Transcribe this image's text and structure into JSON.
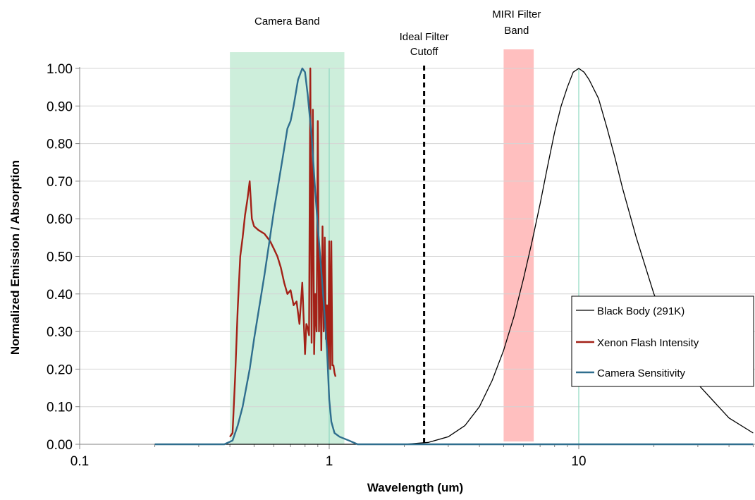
{
  "chart_data": {
    "type": "line",
    "xlabel": "Wavelength (um)",
    "ylabel": "Normalized Emission / Absorption",
    "x_scale": "log",
    "xlim": [
      0.1,
      50
    ],
    "ylim": [
      0,
      1
    ],
    "x_ticks": [
      "0.1",
      "1",
      "10"
    ],
    "y_ticks": [
      "0.00",
      "0.10",
      "0.20",
      "0.30",
      "0.40",
      "0.50",
      "0.60",
      "0.70",
      "0.80",
      "0.90",
      "1.00"
    ],
    "grid": "horizontal",
    "legend_position": "right",
    "annotations": {
      "camera_band": {
        "text": "Camera Band",
        "x_range": [
          0.4,
          1.15
        ],
        "color": "#cdeedb"
      },
      "filter_cutoff": {
        "text_line1": "Ideal Filter",
        "text_line2": "Cutoff",
        "x": 2.4
      },
      "miri_band": {
        "text_line1": "MIRI Filter",
        "text_line2": "Band",
        "x_range": [
          5,
          6.6
        ],
        "color": "#ffbfbf"
      },
      "reference_lines": [
        1,
        10
      ]
    },
    "series": [
      {
        "name": "Black Body (291K)",
        "color": "#000000",
        "x": [
          0.2,
          1,
          2,
          2.5,
          3,
          3.5,
          4,
          4.5,
          5,
          5.5,
          6,
          6.5,
          7,
          7.5,
          8,
          8.5,
          9,
          9.5,
          10,
          10.5,
          11,
          12,
          13,
          14,
          15,
          17,
          20,
          25,
          30,
          40,
          50
        ],
        "y": [
          0,
          0,
          0,
          0.005,
          0.02,
          0.05,
          0.1,
          0.17,
          0.25,
          0.34,
          0.44,
          0.54,
          0.64,
          0.74,
          0.83,
          0.9,
          0.95,
          0.99,
          1,
          0.99,
          0.97,
          0.92,
          0.84,
          0.76,
          0.68,
          0.55,
          0.4,
          0.25,
          0.16,
          0.07,
          0.03
        ]
      },
      {
        "name": "Xenon Flash Intensity",
        "color": "#a32117",
        "x": [
          0.4,
          0.41,
          0.42,
          0.43,
          0.44,
          0.45,
          0.46,
          0.47,
          0.48,
          0.49,
          0.5,
          0.52,
          0.55,
          0.58,
          0.6,
          0.62,
          0.64,
          0.66,
          0.68,
          0.7,
          0.72,
          0.74,
          0.76,
          0.78,
          0.8,
          0.81,
          0.82,
          0.83,
          0.84,
          0.85,
          0.86,
          0.87,
          0.88,
          0.89,
          0.9,
          0.91,
          0.92,
          0.93,
          0.94,
          0.95,
          0.96,
          0.97,
          0.98,
          0.99,
          1.0,
          1.01,
          1.02,
          1.03,
          1.04,
          1.05,
          1.06
        ],
        "y": [
          0.02,
          0.03,
          0.18,
          0.36,
          0.5,
          0.55,
          0.61,
          0.65,
          0.7,
          0.6,
          0.58,
          0.57,
          0.56,
          0.54,
          0.52,
          0.5,
          0.47,
          0.43,
          0.4,
          0.41,
          0.37,
          0.38,
          0.32,
          0.43,
          0.24,
          0.32,
          0.31,
          0.29,
          1.0,
          0.27,
          0.89,
          0.24,
          0.4,
          0.3,
          0.86,
          0.3,
          0.5,
          0.25,
          0.58,
          0.3,
          0.55,
          0.28,
          0.37,
          0.2,
          0.54,
          0.2,
          0.54,
          0.21,
          0.21,
          0.19,
          0.18
        ]
      },
      {
        "name": "Camera Sensitivity",
        "color": "#2f6e8e",
        "x": [
          0.2,
          0.38,
          0.41,
          0.43,
          0.45,
          0.48,
          0.5,
          0.55,
          0.6,
          0.65,
          0.68,
          0.7,
          0.72,
          0.75,
          0.78,
          0.8,
          0.82,
          0.85,
          0.88,
          0.9,
          0.92,
          0.95,
          0.98,
          1.0,
          1.02,
          1.05,
          1.1,
          1.2,
          1.3,
          1.5,
          2,
          50
        ],
        "y": [
          0,
          0,
          0.01,
          0.05,
          0.1,
          0.2,
          0.28,
          0.45,
          0.62,
          0.76,
          0.84,
          0.86,
          0.9,
          0.97,
          1.0,
          0.99,
          0.93,
          0.82,
          0.67,
          0.58,
          0.5,
          0.38,
          0.25,
          0.12,
          0.06,
          0.03,
          0.02,
          0.01,
          0,
          0,
          0,
          0
        ]
      }
    ]
  }
}
